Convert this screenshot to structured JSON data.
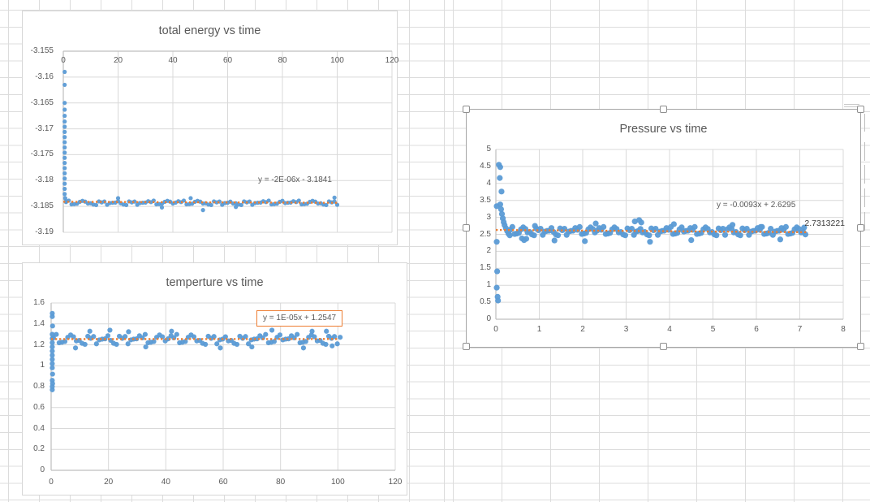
{
  "colors": {
    "marker": "#5b9bd5",
    "trendline": "#ed7d31",
    "chart_grid": "#d9d9d9",
    "axis_line": "#bfbfbf",
    "title_text": "#595959",
    "tick_text": "#595959",
    "equation_text": "#595959",
    "annotation_text": "#3d3d3d",
    "selection_border": "#a6a6a6",
    "worksheet_grid": "#dcdcdc"
  },
  "noise_pattern": [
    0.3,
    -0.55,
    0.85,
    -0.2,
    0.6,
    -0.85,
    0.1,
    0.95,
    -0.4,
    0.5,
    -0.75,
    0.2,
    -0.1,
    0.7,
    -0.65,
    0.4,
    -0.3,
    -0.95,
    0.55,
    0.05
  ],
  "chart_data": [
    {
      "type": "scatter",
      "title": "total energy vs time",
      "xlabel": "",
      "ylabel": "",
      "xlim": [
        0,
        120
      ],
      "ylim": [
        -3.19,
        -3.155
      ],
      "x_ticks": [
        0,
        20,
        40,
        60,
        80,
        100,
        120
      ],
      "y_tick_labels": [
        "-3.155",
        "-3.16",
        "-3.165",
        "-3.17",
        "-3.175",
        "-3.18",
        "-3.185",
        "-3.19"
      ],
      "grid": true,
      "legend": "none",
      "trendline": {
        "equation": "y = -2E-06x - 3.1841",
        "start": [
          0,
          -3.1841
        ],
        "end": [
          100,
          -3.1843
        ],
        "style": "dotted"
      },
      "transient": [
        [
          0.5,
          -3.159
        ],
        [
          0.5,
          -3.1615
        ],
        [
          0.5,
          -3.165
        ],
        [
          0.5,
          -3.1663
        ],
        [
          0.5,
          -3.1675
        ],
        [
          0.5,
          -3.1686
        ],
        [
          0.5,
          -3.1696
        ],
        [
          0.5,
          -3.1706
        ],
        [
          0.5,
          -3.1716
        ],
        [
          0.5,
          -3.1726
        ],
        [
          0.5,
          -3.1736
        ],
        [
          0.5,
          -3.1746
        ],
        [
          0.5,
          -3.1756
        ],
        [
          0.5,
          -3.1766
        ],
        [
          0.5,
          -3.1776
        ],
        [
          0.5,
          -3.1786
        ],
        [
          0.5,
          -3.1796
        ],
        [
          0.5,
          -3.1806
        ],
        [
          0.5,
          -3.1816
        ],
        [
          0.5,
          -3.1826
        ],
        [
          0.7,
          -3.1834
        ],
        [
          1.0,
          -3.184
        ]
      ],
      "plateau": {
        "x_start": 1,
        "x_end": 100.4,
        "step": 1,
        "mean": -3.1843,
        "amplitude": 0.00045
      },
      "outliers": [
        [
          20,
          -3.1834
        ],
        [
          36,
          -3.1852
        ],
        [
          46.5,
          -3.1834
        ],
        [
          51,
          -3.1857
        ],
        [
          63,
          -3.1851
        ],
        [
          99,
          -3.1833
        ]
      ]
    },
    {
      "type": "scatter",
      "title": "temperture vs time",
      "xlabel": "",
      "ylabel": "",
      "xlim": [
        0,
        120
      ],
      "ylim": [
        0,
        1.6
      ],
      "x_ticks": [
        0,
        20,
        40,
        60,
        80,
        100,
        120
      ],
      "y_tick_labels": [
        "1.6",
        "1.4",
        "1.2",
        "1",
        "0.8",
        "0.6",
        "0.4",
        "0.2",
        "0"
      ],
      "grid": true,
      "legend": "none",
      "trendline": {
        "equation": "y = 1E-05x + 1.2547",
        "start": [
          0,
          1.2547
        ],
        "end": [
          100,
          1.2557
        ],
        "style": "dotted",
        "label_boxed": true
      },
      "transient": [
        [
          0.4,
          1.5
        ],
        [
          0.4,
          1.47
        ],
        [
          0.5,
          1.38
        ],
        [
          0.4,
          1.3
        ],
        [
          0.4,
          1.26
        ],
        [
          0.4,
          1.22
        ],
        [
          0.4,
          1.18
        ],
        [
          0.4,
          1.14
        ],
        [
          0.4,
          1.1
        ],
        [
          0.4,
          1.06
        ],
        [
          0.4,
          1.02
        ],
        [
          0.4,
          0.98
        ],
        [
          0.5,
          0.92
        ],
        [
          0.4,
          0.86
        ],
        [
          0.5,
          0.83
        ],
        [
          0.4,
          0.8
        ],
        [
          0.4,
          0.77
        ]
      ],
      "plateau": {
        "x_start": 0.8,
        "x_end": 100.3,
        "step": 1,
        "mean": 1.252,
        "amplitude": 0.05
      },
      "outliers": [
        [
          8.5,
          1.17
        ],
        [
          13.5,
          1.33
        ],
        [
          20.5,
          1.34
        ],
        [
          27,
          1.325
        ],
        [
          33,
          1.18
        ],
        [
          42,
          1.33
        ],
        [
          59,
          1.17
        ],
        [
          70,
          1.18
        ],
        [
          77,
          1.34
        ],
        [
          88,
          1.17
        ],
        [
          91,
          1.33
        ],
        [
          96,
          1.33
        ],
        [
          98,
          1.19
        ]
      ]
    },
    {
      "type": "scatter",
      "title": "Pressure vs time",
      "xlabel": "",
      "ylabel": "",
      "xlim": [
        0,
        8
      ],
      "ylim": [
        0,
        5
      ],
      "x_ticks": [
        0,
        1,
        2,
        3,
        4,
        5,
        6,
        7,
        8
      ],
      "y_tick_labels": [
        "5",
        "4.5",
        "4",
        "3.5",
        "3",
        "2.5",
        "2",
        "1.5",
        "1",
        "0.5",
        "0"
      ],
      "grid": true,
      "legend": "none",
      "selected": true,
      "annotation": "2.7313221",
      "trendline": {
        "equation": "y = -0.0093x + 2.6295",
        "start": [
          0,
          2.6295
        ],
        "end": [
          7.15,
          2.563
        ],
        "style": "dotted"
      },
      "transient": [
        [
          0.02,
          3.33
        ],
        [
          0.02,
          2.28
        ],
        [
          0.03,
          1.41
        ],
        [
          0.02,
          0.93
        ],
        [
          0.04,
          0.66
        ],
        [
          0.05,
          0.55
        ],
        [
          0.07,
          4.55
        ],
        [
          0.1,
          4.48
        ],
        [
          0.09,
          4.16
        ],
        [
          0.13,
          3.76
        ],
        [
          0.1,
          3.38
        ],
        [
          0.12,
          3.24
        ],
        [
          0.14,
          3.1
        ],
        [
          0.16,
          2.97
        ],
        [
          0.18,
          2.86
        ],
        [
          0.2,
          2.77
        ],
        [
          0.23,
          2.68
        ],
        [
          0.26,
          2.6
        ],
        [
          0.29,
          2.52
        ],
        [
          0.32,
          2.47
        ]
      ],
      "plateau": {
        "x_start": 0.33,
        "x_end": 7.12,
        "step": 0.05,
        "mean": 2.595,
        "amplitude": 0.13
      },
      "outliers": [
        [
          0.6,
          2.38
        ],
        [
          0.65,
          2.33
        ],
        [
          0.7,
          2.37
        ],
        [
          0.9,
          2.75
        ],
        [
          1.35,
          2.32
        ],
        [
          2.05,
          2.3
        ],
        [
          2.3,
          2.82
        ],
        [
          3.2,
          2.88
        ],
        [
          3.3,
          2.92
        ],
        [
          3.35,
          2.85
        ],
        [
          3.55,
          2.28
        ],
        [
          4.1,
          2.8
        ],
        [
          4.5,
          2.33
        ],
        [
          5.45,
          2.78
        ],
        [
          6.1,
          2.72
        ],
        [
          6.55,
          2.35
        ],
        [
          7.1,
          2.7
        ]
      ]
    }
  ]
}
